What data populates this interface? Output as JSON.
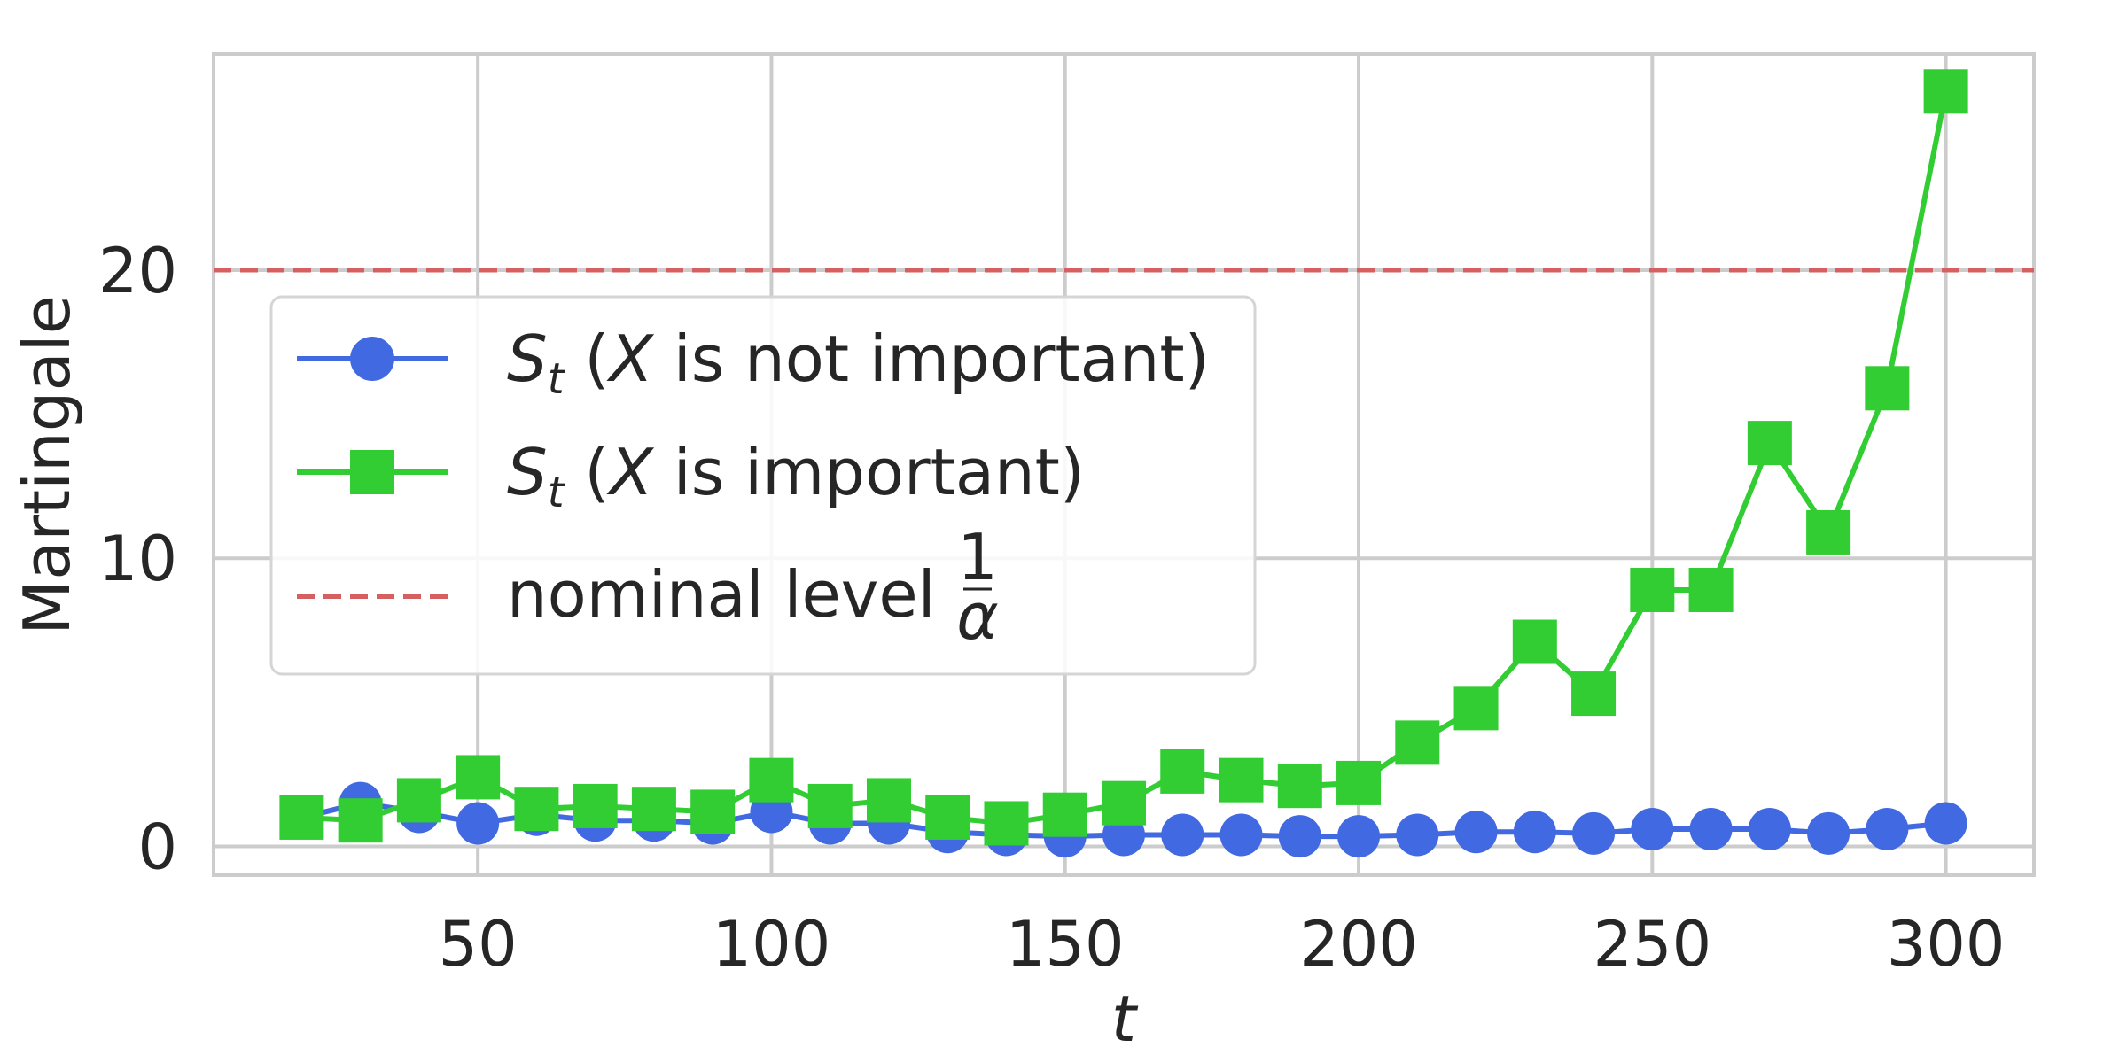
{
  "chart_data": {
    "type": "line",
    "xlabel": "t",
    "ylabel": "Martingale",
    "xlim": [
      5,
      315
    ],
    "ylim": [
      -1,
      27.5
    ],
    "xticks": [
      50,
      100,
      150,
      200,
      250,
      300
    ],
    "yticks": [
      0,
      10,
      20
    ],
    "grid": true,
    "legend_position": "center-left",
    "hline": {
      "name": "nominal level 1/α",
      "y": 20,
      "color": "#d65f5f",
      "style": "dashed"
    },
    "series": [
      {
        "name": "S_t (X is not important)",
        "marker": "circle",
        "color": "#4169e1",
        "x": [
          20,
          30,
          40,
          50,
          60,
          70,
          80,
          90,
          100,
          110,
          120,
          130,
          140,
          150,
          160,
          170,
          180,
          190,
          200,
          210,
          220,
          230,
          240,
          250,
          260,
          270,
          280,
          290,
          300
        ],
        "values": [
          1.0,
          1.5,
          1.2,
          0.8,
          1.1,
          0.9,
          0.9,
          0.8,
          1.2,
          0.8,
          0.8,
          0.5,
          0.4,
          0.35,
          0.4,
          0.4,
          0.4,
          0.35,
          0.35,
          0.4,
          0.5,
          0.5,
          0.45,
          0.6,
          0.6,
          0.6,
          0.45,
          0.6,
          0.8
        ]
      },
      {
        "name": "S_t (X is important)",
        "marker": "square",
        "color": "#32cd32",
        "x": [
          20,
          30,
          40,
          50,
          60,
          70,
          80,
          90,
          100,
          110,
          120,
          130,
          140,
          150,
          160,
          170,
          180,
          190,
          200,
          210,
          220,
          230,
          240,
          250,
          260,
          270,
          280,
          290,
          300
        ],
        "values": [
          1.0,
          0.9,
          1.6,
          2.4,
          1.3,
          1.4,
          1.3,
          1.2,
          2.3,
          1.4,
          1.6,
          1.0,
          0.8,
          1.1,
          1.5,
          2.6,
          2.3,
          2.1,
          2.2,
          3.6,
          4.8,
          7.1,
          5.3,
          8.9,
          8.9,
          14.0,
          10.9,
          15.9,
          26.2
        ]
      }
    ]
  },
  "legend": {
    "entries": [
      {
        "s": "S",
        "t": "t",
        "open": " (",
        "x": "X",
        "rest": " is not important)"
      },
      {
        "s": "S",
        "t": "t",
        "open": " (",
        "x": "X",
        "rest": " is important)"
      },
      {
        "text": "nominal level ",
        "num": "1",
        "den": "α"
      }
    ]
  }
}
